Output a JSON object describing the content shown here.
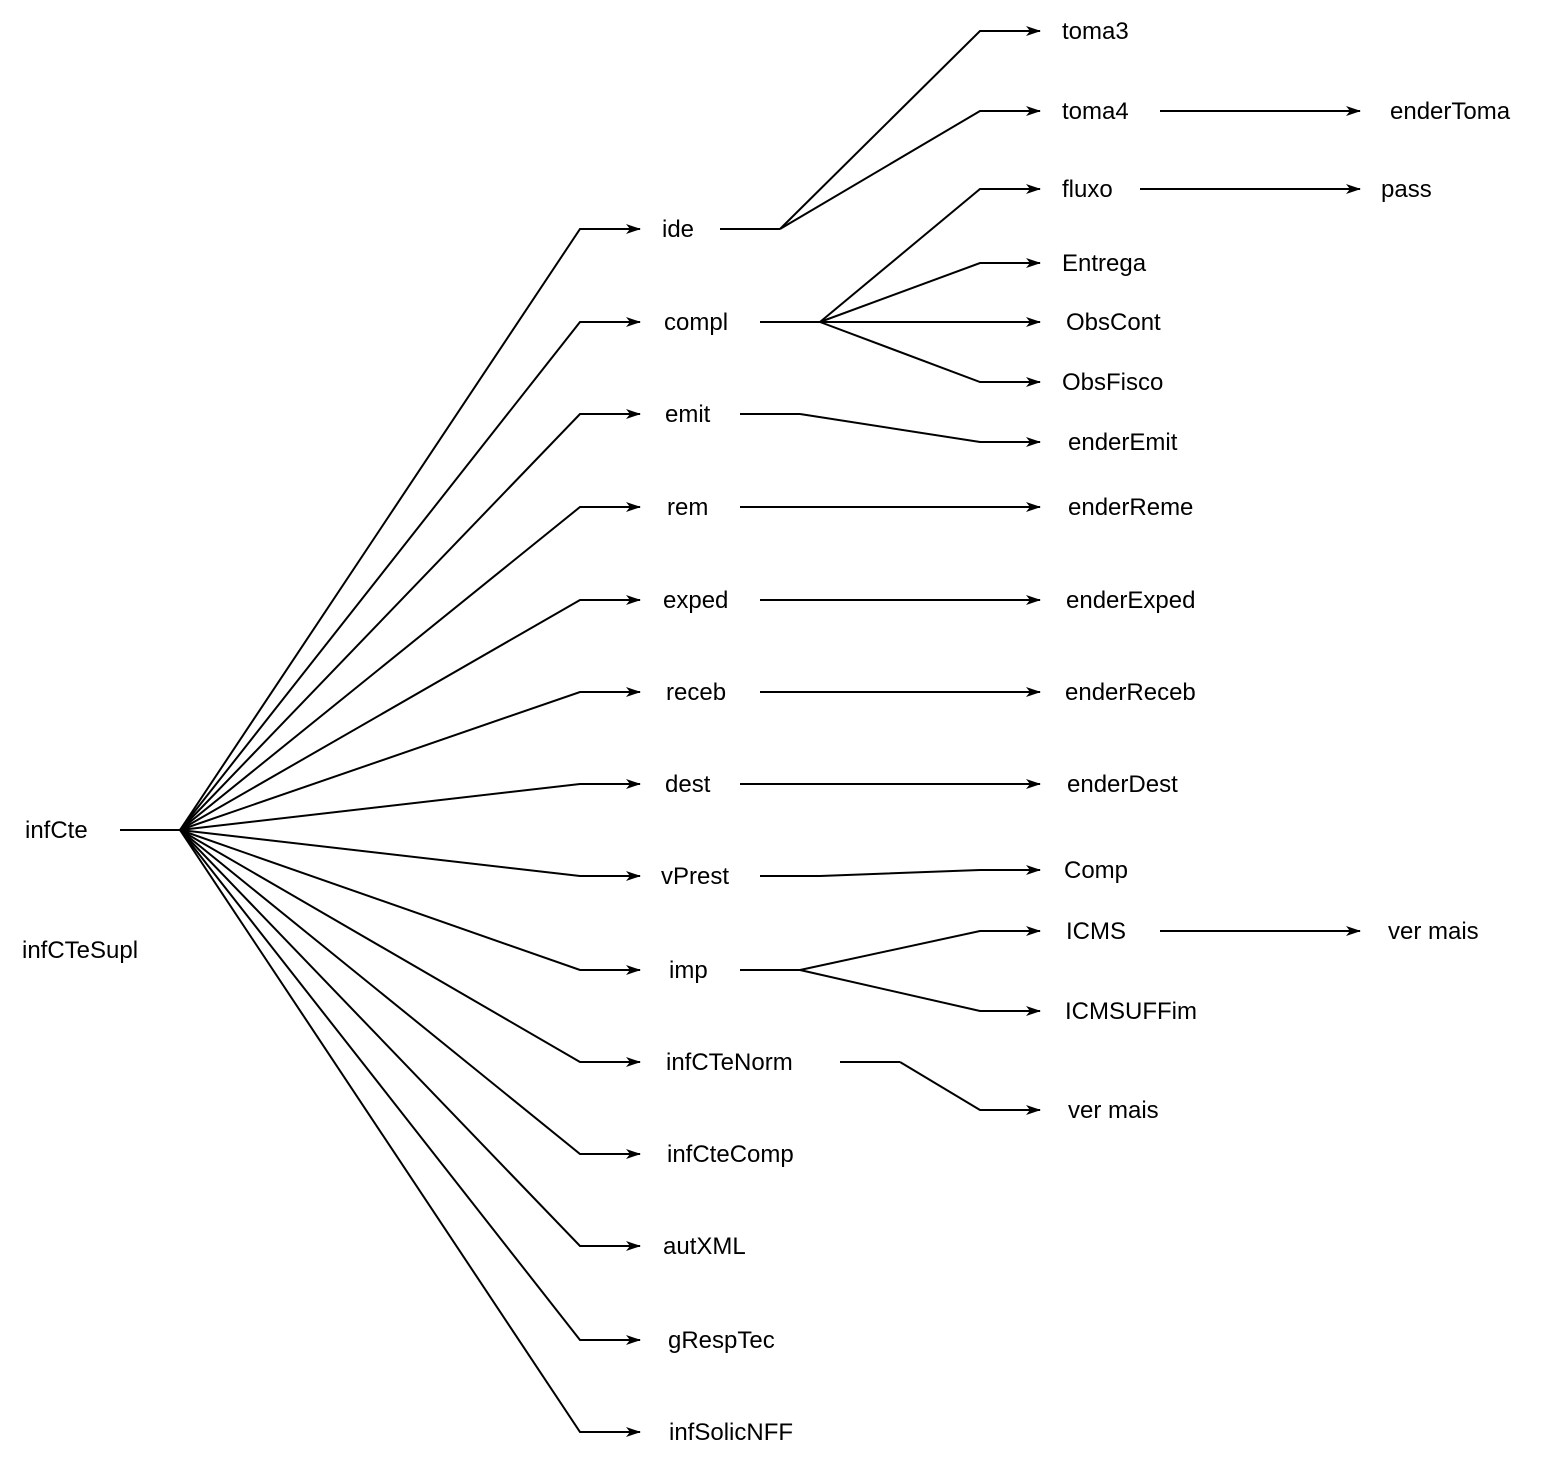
{
  "diagram": {
    "colors": {
      "line": "#000000",
      "text": "#000000",
      "background": "#ffffff"
    },
    "root": {
      "label": "infCte"
    },
    "standalone": {
      "label": "infCTeSupl"
    },
    "level1": [
      {
        "id": "ide",
        "label": "ide"
      },
      {
        "id": "compl",
        "label": "compl"
      },
      {
        "id": "emit",
        "label": "emit"
      },
      {
        "id": "rem",
        "label": "rem"
      },
      {
        "id": "exped",
        "label": "exped"
      },
      {
        "id": "receb",
        "label": "receb"
      },
      {
        "id": "dest",
        "label": "dest"
      },
      {
        "id": "vPrest",
        "label": "vPrest"
      },
      {
        "id": "imp",
        "label": "imp"
      },
      {
        "id": "infCTeNorm",
        "label": "infCTeNorm"
      },
      {
        "id": "infCteComp",
        "label": "infCteComp"
      },
      {
        "id": "autXML",
        "label": "autXML"
      },
      {
        "id": "gRespTec",
        "label": "gRespTec"
      },
      {
        "id": "infSolicNFF",
        "label": "infSolicNFF"
      }
    ],
    "level2": [
      {
        "id": "toma3",
        "label": "toma3",
        "parent": "ide"
      },
      {
        "id": "toma4",
        "label": "toma4",
        "parent": "ide"
      },
      {
        "id": "fluxo",
        "label": "fluxo",
        "parent": "compl"
      },
      {
        "id": "Entrega",
        "label": "Entrega",
        "parent": "compl"
      },
      {
        "id": "ObsCont",
        "label": "ObsCont",
        "parent": "compl"
      },
      {
        "id": "ObsFisco",
        "label": "ObsFisco",
        "parent": "compl"
      },
      {
        "id": "enderEmit",
        "label": "enderEmit",
        "parent": "emit"
      },
      {
        "id": "enderReme",
        "label": "enderReme",
        "parent": "rem"
      },
      {
        "id": "enderExped",
        "label": "enderExped",
        "parent": "exped"
      },
      {
        "id": "enderReceb",
        "label": "enderReceb",
        "parent": "receb"
      },
      {
        "id": "enderDest",
        "label": "enderDest",
        "parent": "dest"
      },
      {
        "id": "Comp",
        "label": "Comp",
        "parent": "vPrest"
      },
      {
        "id": "ICMS",
        "label": "ICMS",
        "parent": "imp"
      },
      {
        "id": "ICMSUFFim",
        "label": "ICMSUFFim",
        "parent": "imp"
      },
      {
        "id": "verMaisNorm",
        "label": "ver mais",
        "parent": "infCTeNorm"
      }
    ],
    "level3": [
      {
        "id": "enderToma",
        "label": "enderToma",
        "parent": "toma4"
      },
      {
        "id": "pass",
        "label": "pass",
        "parent": "fluxo"
      },
      {
        "id": "verMaisICMS",
        "label": "ver mais",
        "parent": "ICMS"
      }
    ]
  }
}
